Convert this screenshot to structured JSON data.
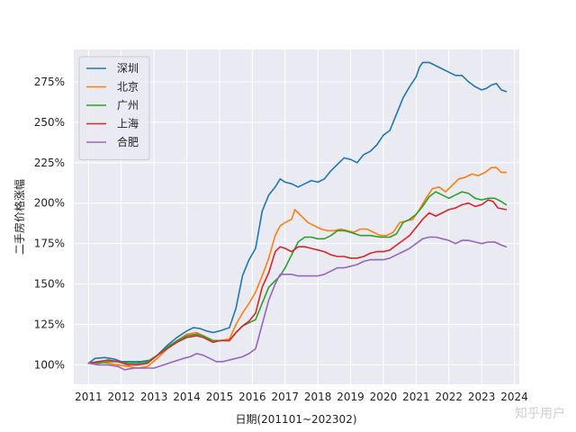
{
  "chart_data": {
    "type": "line",
    "xlabel": "日期(201101~202302)",
    "ylabel": "二手房价格涨幅",
    "x_ticks": [
      "2011",
      "2012",
      "2013",
      "2014",
      "2015",
      "2016",
      "2017",
      "2018",
      "2019",
      "2020",
      "2021",
      "2022",
      "2023",
      "2024"
    ],
    "y_ticks": [
      "100%",
      "125%",
      "150%",
      "175%",
      "200%",
      "225%",
      "250%",
      "275%"
    ],
    "xlim": [
      2010.55,
      2024.15
    ],
    "ylim": [
      88,
      295
    ],
    "grid": true,
    "legend_position": "top-left",
    "series": [
      {
        "name": "深圳",
        "color": "#1f77b4",
        "points": [
          [
            2011.0,
            101
          ],
          [
            2011.2,
            104
          ],
          [
            2011.5,
            104.5
          ],
          [
            2011.8,
            103.5
          ],
          [
            2012.0,
            102
          ],
          [
            2012.3,
            102
          ],
          [
            2012.6,
            102
          ],
          [
            2012.9,
            103
          ],
          [
            2013.1,
            106
          ],
          [
            2013.4,
            112
          ],
          [
            2013.7,
            117
          ],
          [
            2014.0,
            121
          ],
          [
            2014.2,
            123
          ],
          [
            2014.4,
            122.5
          ],
          [
            2014.6,
            121
          ],
          [
            2014.8,
            120
          ],
          [
            2015.0,
            121
          ],
          [
            2015.3,
            123
          ],
          [
            2015.5,
            135
          ],
          [
            2015.7,
            155
          ],
          [
            2015.9,
            165
          ],
          [
            2016.1,
            172
          ],
          [
            2016.3,
            195
          ],
          [
            2016.5,
            205
          ],
          [
            2016.7,
            210
          ],
          [
            2016.85,
            215
          ],
          [
            2017.0,
            213
          ],
          [
            2017.2,
            212
          ],
          [
            2017.4,
            210
          ],
          [
            2017.6,
            212
          ],
          [
            2017.8,
            214
          ],
          [
            2018.0,
            213
          ],
          [
            2018.2,
            215
          ],
          [
            2018.4,
            220
          ],
          [
            2018.6,
            224
          ],
          [
            2018.8,
            228
          ],
          [
            2019.0,
            227
          ],
          [
            2019.2,
            225
          ],
          [
            2019.4,
            230
          ],
          [
            2019.6,
            232
          ],
          [
            2019.8,
            236
          ],
          [
            2020.0,
            242
          ],
          [
            2020.2,
            245
          ],
          [
            2020.4,
            255
          ],
          [
            2020.6,
            265
          ],
          [
            2020.8,
            272
          ],
          [
            2021.0,
            278
          ],
          [
            2021.1,
            284
          ],
          [
            2021.2,
            287
          ],
          [
            2021.4,
            287
          ],
          [
            2021.6,
            285
          ],
          [
            2021.8,
            283
          ],
          [
            2022.0,
            281
          ],
          [
            2022.2,
            279
          ],
          [
            2022.4,
            279
          ],
          [
            2022.6,
            275
          ],
          [
            2022.8,
            272
          ],
          [
            2023.0,
            270
          ],
          [
            2023.15,
            271
          ],
          [
            2023.3,
            273
          ],
          [
            2023.45,
            274
          ],
          [
            2023.6,
            270
          ],
          [
            2023.75,
            269
          ]
        ]
      },
      {
        "name": "北京",
        "color": "#ff7f0e",
        "points": [
          [
            2011.0,
            101
          ],
          [
            2011.3,
            102
          ],
          [
            2011.6,
            101
          ],
          [
            2011.9,
            100
          ],
          [
            2012.2,
            99
          ],
          [
            2012.5,
            98
          ],
          [
            2012.8,
            99
          ],
          [
            2013.1,
            104
          ],
          [
            2013.4,
            110
          ],
          [
            2013.7,
            115
          ],
          [
            2014.0,
            119
          ],
          [
            2014.3,
            120
          ],
          [
            2014.5,
            118
          ],
          [
            2014.8,
            115
          ],
          [
            2015.0,
            115
          ],
          [
            2015.3,
            116
          ],
          [
            2015.5,
            125
          ],
          [
            2015.7,
            132
          ],
          [
            2015.9,
            138
          ],
          [
            2016.1,
            145
          ],
          [
            2016.3,
            155
          ],
          [
            2016.5,
            166
          ],
          [
            2016.7,
            180
          ],
          [
            2016.85,
            186
          ],
          [
            2017.0,
            188
          ],
          [
            2017.2,
            190
          ],
          [
            2017.3,
            196
          ],
          [
            2017.5,
            192
          ],
          [
            2017.7,
            188
          ],
          [
            2017.9,
            186
          ],
          [
            2018.1,
            184
          ],
          [
            2018.3,
            183
          ],
          [
            2018.5,
            183
          ],
          [
            2018.7,
            184
          ],
          [
            2018.9,
            183
          ],
          [
            2019.1,
            182
          ],
          [
            2019.3,
            184
          ],
          [
            2019.5,
            184
          ],
          [
            2019.7,
            182
          ],
          [
            2019.9,
            180
          ],
          [
            2020.1,
            180
          ],
          [
            2020.3,
            182
          ],
          [
            2020.5,
            188
          ],
          [
            2020.7,
            189
          ],
          [
            2020.9,
            190
          ],
          [
            2021.1,
            196
          ],
          [
            2021.3,
            203
          ],
          [
            2021.5,
            209
          ],
          [
            2021.7,
            210
          ],
          [
            2021.9,
            207
          ],
          [
            2022.1,
            211
          ],
          [
            2022.3,
            215
          ],
          [
            2022.5,
            216
          ],
          [
            2022.7,
            218
          ],
          [
            2022.9,
            217
          ],
          [
            2023.1,
            219
          ],
          [
            2023.3,
            222
          ],
          [
            2023.45,
            222
          ],
          [
            2023.6,
            219
          ],
          [
            2023.75,
            219
          ]
        ]
      },
      {
        "name": "广州",
        "color": "#2ca02c",
        "points": [
          [
            2011.0,
            101
          ],
          [
            2011.3,
            101
          ],
          [
            2011.6,
            102
          ],
          [
            2011.9,
            102
          ],
          [
            2012.2,
            101
          ],
          [
            2012.5,
            101
          ],
          [
            2012.8,
            102
          ],
          [
            2013.1,
            106
          ],
          [
            2013.4,
            111
          ],
          [
            2013.7,
            115
          ],
          [
            2014.0,
            118
          ],
          [
            2014.3,
            119
          ],
          [
            2014.5,
            118
          ],
          [
            2014.8,
            115
          ],
          [
            2015.0,
            115
          ],
          [
            2015.3,
            115
          ],
          [
            2015.5,
            120
          ],
          [
            2015.7,
            124
          ],
          [
            2015.9,
            126
          ],
          [
            2016.1,
            128
          ],
          [
            2016.3,
            138
          ],
          [
            2016.5,
            148
          ],
          [
            2016.7,
            152
          ],
          [
            2016.85,
            155
          ],
          [
            2017.0,
            160
          ],
          [
            2017.2,
            168
          ],
          [
            2017.4,
            176
          ],
          [
            2017.6,
            179
          ],
          [
            2017.8,
            179
          ],
          [
            2018.0,
            178
          ],
          [
            2018.2,
            178
          ],
          [
            2018.4,
            180
          ],
          [
            2018.6,
            183
          ],
          [
            2018.8,
            183
          ],
          [
            2019.0,
            182
          ],
          [
            2019.3,
            180
          ],
          [
            2019.6,
            180
          ],
          [
            2019.9,
            179
          ],
          [
            2020.2,
            179
          ],
          [
            2020.4,
            181
          ],
          [
            2020.6,
            188
          ],
          [
            2020.8,
            190
          ],
          [
            2021.0,
            193
          ],
          [
            2021.2,
            198
          ],
          [
            2021.4,
            204
          ],
          [
            2021.6,
            207
          ],
          [
            2021.8,
            205
          ],
          [
            2022.0,
            203
          ],
          [
            2022.2,
            205
          ],
          [
            2022.4,
            207
          ],
          [
            2022.6,
            206
          ],
          [
            2022.8,
            203
          ],
          [
            2023.0,
            202
          ],
          [
            2023.2,
            203
          ],
          [
            2023.4,
            203
          ],
          [
            2023.6,
            201
          ],
          [
            2023.75,
            199
          ]
        ]
      },
      {
        "name": "上海",
        "color": "#d62728",
        "points": [
          [
            2011.0,
            101
          ],
          [
            2011.3,
            102
          ],
          [
            2011.6,
            103
          ],
          [
            2011.9,
            102
          ],
          [
            2012.2,
            100
          ],
          [
            2012.5,
            100
          ],
          [
            2012.8,
            101
          ],
          [
            2013.1,
            106
          ],
          [
            2013.4,
            110
          ],
          [
            2013.7,
            114
          ],
          [
            2014.0,
            117
          ],
          [
            2014.3,
            118
          ],
          [
            2014.5,
            117
          ],
          [
            2014.8,
            114
          ],
          [
            2015.0,
            115
          ],
          [
            2015.3,
            115
          ],
          [
            2015.5,
            120
          ],
          [
            2015.7,
            124
          ],
          [
            2015.9,
            127
          ],
          [
            2016.1,
            132
          ],
          [
            2016.3,
            148
          ],
          [
            2016.5,
            157
          ],
          [
            2016.7,
            170
          ],
          [
            2016.85,
            173
          ],
          [
            2017.0,
            172
          ],
          [
            2017.2,
            170
          ],
          [
            2017.4,
            173
          ],
          [
            2017.6,
            173
          ],
          [
            2017.8,
            172
          ],
          [
            2018.0,
            171
          ],
          [
            2018.2,
            170
          ],
          [
            2018.4,
            168
          ],
          [
            2018.6,
            167
          ],
          [
            2018.8,
            167
          ],
          [
            2019.0,
            166
          ],
          [
            2019.2,
            166
          ],
          [
            2019.4,
            167
          ],
          [
            2019.6,
            169
          ],
          [
            2019.8,
            170
          ],
          [
            2020.0,
            170
          ],
          [
            2020.2,
            171
          ],
          [
            2020.4,
            174
          ],
          [
            2020.6,
            177
          ],
          [
            2020.8,
            180
          ],
          [
            2021.0,
            185
          ],
          [
            2021.2,
            190
          ],
          [
            2021.4,
            194
          ],
          [
            2021.6,
            192
          ],
          [
            2021.8,
            194
          ],
          [
            2022.0,
            196
          ],
          [
            2022.2,
            197
          ],
          [
            2022.4,
            199
          ],
          [
            2022.6,
            200
          ],
          [
            2022.8,
            198
          ],
          [
            2023.0,
            199
          ],
          [
            2023.2,
            202
          ],
          [
            2023.35,
            201
          ],
          [
            2023.5,
            197
          ],
          [
            2023.75,
            196
          ]
        ]
      },
      {
        "name": "合肥",
        "color": "#9467bd",
        "points": [
          [
            2011.0,
            101
          ],
          [
            2011.3,
            100
          ],
          [
            2011.6,
            100
          ],
          [
            2011.9,
            99
          ],
          [
            2012.1,
            97
          ],
          [
            2012.4,
            98
          ],
          [
            2012.7,
            98
          ],
          [
            2013.0,
            98
          ],
          [
            2013.3,
            100
          ],
          [
            2013.6,
            102
          ],
          [
            2013.9,
            104
          ],
          [
            2014.1,
            105
          ],
          [
            2014.3,
            107
          ],
          [
            2014.5,
            106
          ],
          [
            2014.7,
            104
          ],
          [
            2014.9,
            102
          ],
          [
            2015.1,
            102
          ],
          [
            2015.3,
            103
          ],
          [
            2015.5,
            104
          ],
          [
            2015.7,
            105
          ],
          [
            2015.9,
            107
          ],
          [
            2016.1,
            110
          ],
          [
            2016.3,
            125
          ],
          [
            2016.5,
            140
          ],
          [
            2016.7,
            150
          ],
          [
            2016.85,
            156
          ],
          [
            2017.0,
            156
          ],
          [
            2017.2,
            156
          ],
          [
            2017.4,
            155
          ],
          [
            2017.6,
            155
          ],
          [
            2017.8,
            155
          ],
          [
            2018.0,
            155
          ],
          [
            2018.2,
            156
          ],
          [
            2018.4,
            158
          ],
          [
            2018.6,
            160
          ],
          [
            2018.8,
            160
          ],
          [
            2019.0,
            161
          ],
          [
            2019.2,
            162
          ],
          [
            2019.4,
            164
          ],
          [
            2019.6,
            165
          ],
          [
            2019.8,
            165
          ],
          [
            2020.0,
            165
          ],
          [
            2020.2,
            166
          ],
          [
            2020.4,
            168
          ],
          [
            2020.6,
            170
          ],
          [
            2020.8,
            172
          ],
          [
            2021.0,
            175
          ],
          [
            2021.2,
            178
          ],
          [
            2021.4,
            179
          ],
          [
            2021.6,
            179
          ],
          [
            2021.8,
            178
          ],
          [
            2022.0,
            177
          ],
          [
            2022.2,
            175
          ],
          [
            2022.4,
            177
          ],
          [
            2022.6,
            177
          ],
          [
            2022.8,
            176
          ],
          [
            2023.0,
            175
          ],
          [
            2023.2,
            176
          ],
          [
            2023.4,
            176
          ],
          [
            2023.6,
            174
          ],
          [
            2023.75,
            173
          ]
        ]
      }
    ]
  },
  "watermark": "知乎用户"
}
